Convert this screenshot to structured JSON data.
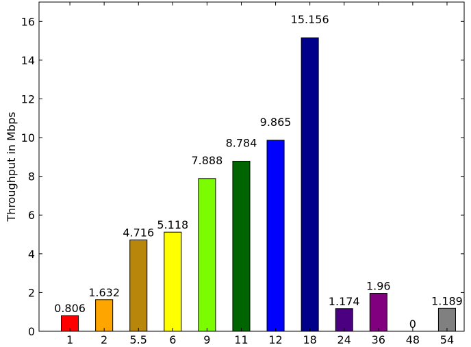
{
  "chart_data": {
    "type": "bar",
    "title": "",
    "xlabel": "",
    "ylabel": "Throughput in Mbps",
    "ylim": [
      0,
      17
    ],
    "yticks": [
      0,
      2,
      4,
      6,
      8,
      10,
      12,
      14,
      16
    ],
    "categories": [
      "1",
      "2",
      "5.5",
      "6",
      "9",
      "11",
      "12",
      "18",
      "24",
      "36",
      "48",
      "54"
    ],
    "values": [
      0.806,
      1.632,
      4.716,
      5.118,
      7.888,
      8.784,
      9.865,
      15.156,
      1.174,
      1.96,
      0,
      1.189
    ],
    "data_labels": [
      "0.806",
      "1.632",
      "4.716",
      "5.118",
      "7.888",
      "8.784",
      "9.865",
      "15.156",
      "1.174",
      "1.96",
      "0",
      "1.189"
    ],
    "colors": [
      "#ff0000",
      "#ffa500",
      "#b8860b",
      "#ffff00",
      "#7cfc00",
      "#006400",
      "#0000ff",
      "#00008b",
      "#4b0082",
      "#800080",
      "#ffffff",
      "#808080"
    ],
    "grid": false,
    "legend": "none"
  }
}
